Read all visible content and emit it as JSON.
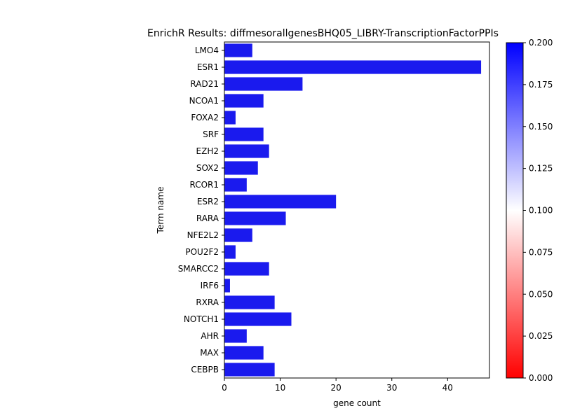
{
  "chart_data": {
    "type": "bar",
    "orientation": "horizontal",
    "title": "EnrichR Results: diffmesorallgenesBHQ05_LIBRY-TranscriptionFactorPPIs",
    "xlabel": "gene count",
    "ylabel": "Term name",
    "xlim": [
      0,
      47.5
    ],
    "x_ticks": [
      "0",
      "10",
      "20",
      "30",
      "40"
    ],
    "categories": [
      "LMO4",
      "ESR1",
      "RAD21",
      "NCOA1",
      "FOXA2",
      "SRF",
      "EZH2",
      "SOX2",
      "RCOR1",
      "ESR2",
      "RARA",
      "NFE2L2",
      "POU2F2",
      "SMARCC2",
      "IRF6",
      "RXRA",
      "NOTCH1",
      "AHR",
      "MAX",
      "CEBPB"
    ],
    "values": [
      5,
      46,
      14,
      7,
      2,
      7,
      8,
      6,
      4,
      20,
      11,
      5,
      2,
      8,
      1,
      9,
      12,
      4,
      7,
      9
    ],
    "bar_color": "#1a1aee",
    "grid": false,
    "colorbar": {
      "colormap": "bwr_r",
      "colors": [
        "#ff0000",
        "#ffffff",
        "#0000ff"
      ],
      "range": [
        0.0,
        0.2
      ],
      "tick_labels": [
        "0.000",
        "0.025",
        "0.050",
        "0.075",
        "0.100",
        "0.125",
        "0.150",
        "0.175",
        "0.200"
      ]
    }
  }
}
